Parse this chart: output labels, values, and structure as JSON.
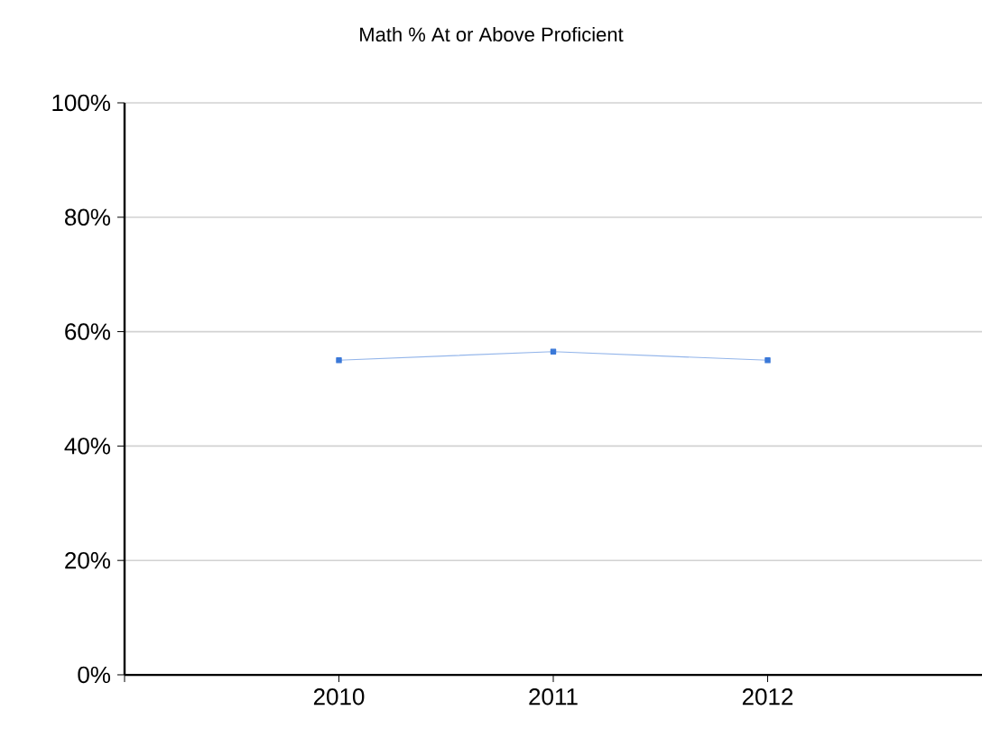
{
  "chart_data": {
    "type": "line",
    "title": "Math % At or Above Proficient",
    "categories": [
      "2010",
      "2011",
      "2012"
    ],
    "series": [
      {
        "color": "#3a78d8",
        "values": [
          55,
          56.5,
          55
        ]
      }
    ],
    "ylim": [
      0,
      100
    ],
    "yticks": [
      {
        "value": 0,
        "label": "0%"
      },
      {
        "value": 20,
        "label": "20%"
      },
      {
        "value": 40,
        "label": "40%"
      },
      {
        "value": 60,
        "label": "60%"
      },
      {
        "value": 80,
        "label": "80%"
      },
      {
        "value": 100,
        "label": "100%"
      }
    ],
    "grid": "y",
    "marker": "square",
    "line_style": "solid"
  }
}
